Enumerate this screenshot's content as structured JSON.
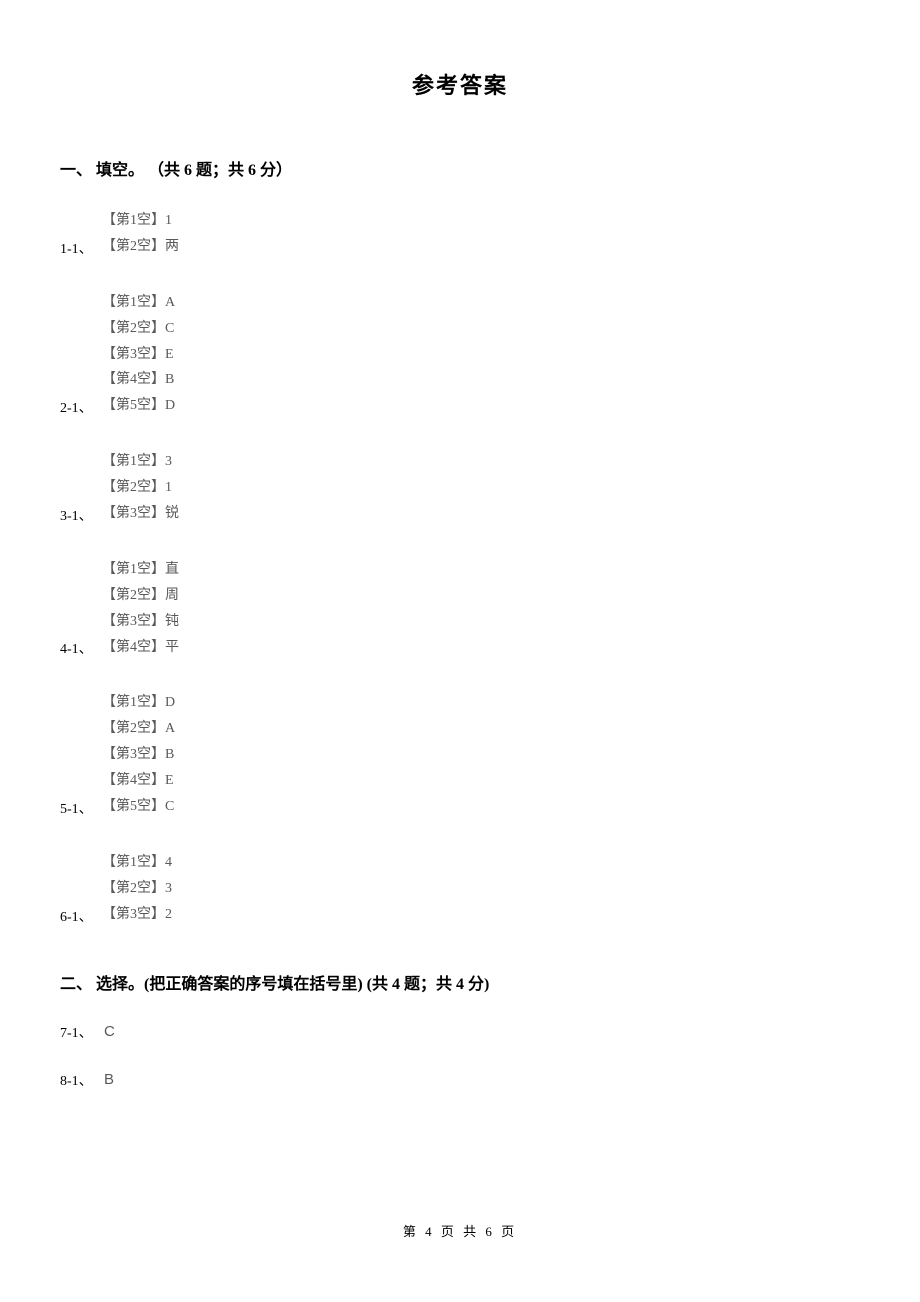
{
  "title": "参考答案",
  "section1": {
    "header": "一、 填空。 （共 6 题；共 6 分）"
  },
  "section2": {
    "header": "二、 选择。(把正确答案的序号填在括号里)  (共 4 题；共 4 分)"
  },
  "q1": {
    "num": "1-1、",
    "lines": [
      "【第1空】1",
      "【第2空】两"
    ]
  },
  "q2": {
    "num": "2-1、",
    "lines": [
      "【第1空】A",
      "【第2空】C",
      "【第3空】E",
      "【第4空】B",
      "【第5空】D"
    ]
  },
  "q3": {
    "num": "3-1、",
    "lines": [
      "【第1空】3",
      "【第2空】1",
      "【第3空】锐"
    ]
  },
  "q4": {
    "num": "4-1、",
    "lines": [
      "【第1空】直",
      "【第2空】周",
      "【第3空】钝",
      "【第4空】平"
    ]
  },
  "q5": {
    "num": "5-1、",
    "lines": [
      "【第1空】D",
      "【第2空】A",
      "【第3空】B",
      "【第4空】E",
      "【第5空】C"
    ]
  },
  "q6": {
    "num": "6-1、",
    "lines": [
      "【第1空】4",
      "【第2空】3",
      "【第3空】2"
    ]
  },
  "q7": {
    "num": "7-1、",
    "letter": "C"
  },
  "q8": {
    "num": "8-1、",
    "letter": "B"
  },
  "footer": "第 4 页 共 6 页"
}
